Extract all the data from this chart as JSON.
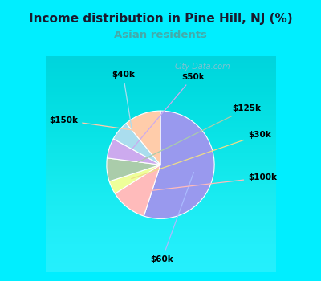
{
  "title": "Income distribution in Pine Hill, NJ (%)",
  "subtitle": "Asian residents",
  "title_color": "#1a1a2e",
  "subtitle_color": "#44aaaa",
  "bg_cyan": "#00eeff",
  "bg_chart_color1": "#c8eede",
  "bg_chart_color2": "#e8f8f0",
  "labels": [
    "$60k",
    "$100k",
    "$30k",
    "$125k",
    "$50k",
    "$40k",
    "$150k"
  ],
  "values": [
    55,
    11,
    4,
    7,
    6,
    6,
    11
  ],
  "colors": [
    "#9999ee",
    "#ffbbbb",
    "#eeff99",
    "#aaccaa",
    "#ccaaee",
    "#aaddee",
    "#ffccaa"
  ],
  "startangle": 90,
  "label_color": "#000000",
  "watermark": "City-Data.com",
  "line_colors": {
    "$60k": "#aabbff",
    "$100k": "#ffbbbb",
    "$30k": "#eedd88",
    "$125k": "#aaccaa",
    "$50k": "#ccaaee",
    "$40k": "#aaddee",
    "$150k": "#ffccaa"
  }
}
